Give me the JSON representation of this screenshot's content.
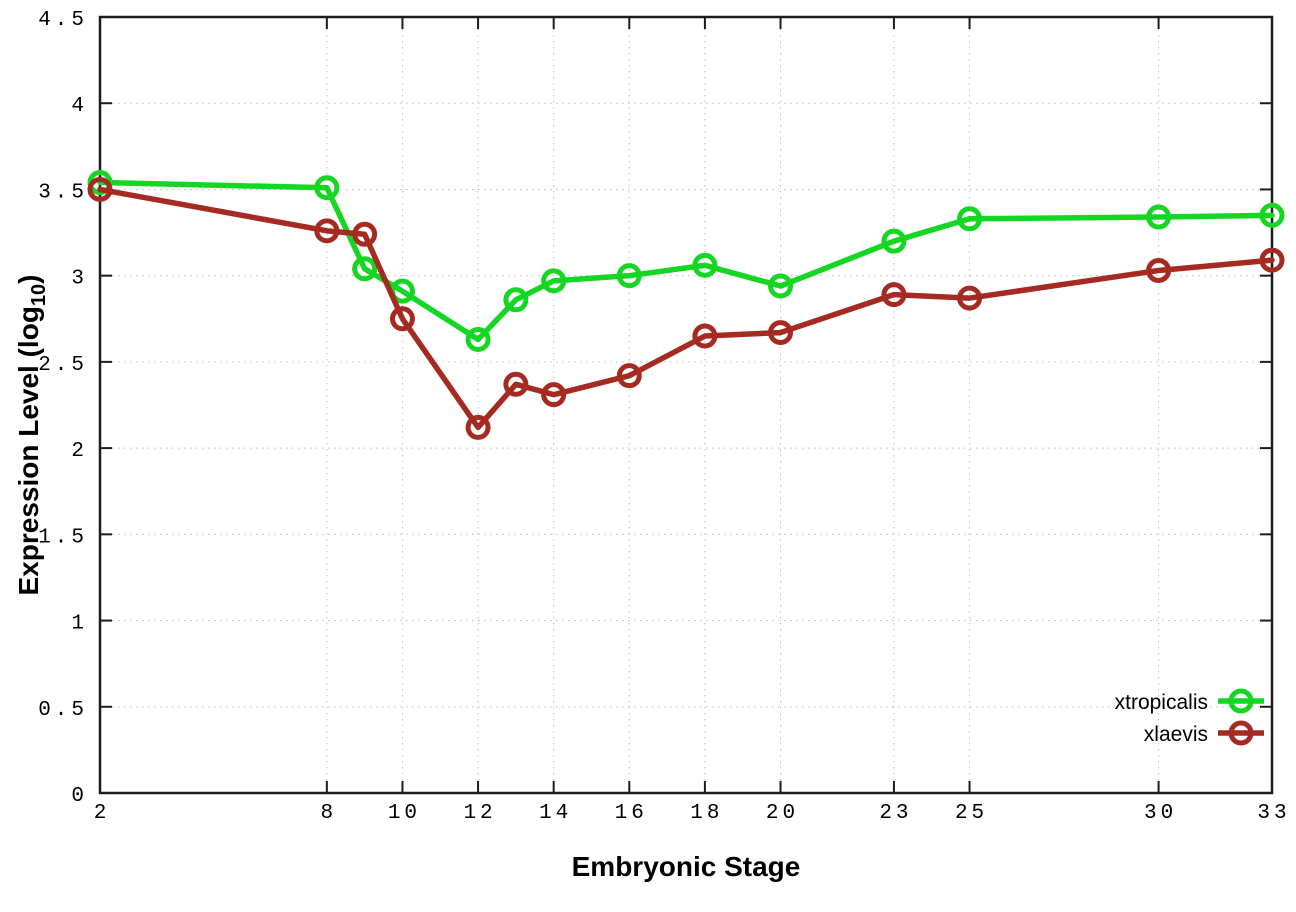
{
  "chart_data": {
    "type": "line",
    "title": "",
    "xlabel": "Embryonic Stage",
    "ylabel": {
      "main": "Expression Level (log",
      "sub": "10",
      "close": ")"
    },
    "x": [
      2,
      8,
      9,
      10,
      12,
      13,
      14,
      16,
      18,
      20,
      23,
      25,
      30,
      33
    ],
    "xticks": [
      2,
      8,
      10,
      12,
      14,
      16,
      18,
      20,
      23,
      25,
      30,
      33
    ],
    "yticks": [
      0,
      0.5,
      1,
      1.5,
      2,
      2.5,
      3,
      3.5,
      4,
      4.5
    ],
    "xlim": [
      2,
      33
    ],
    "ylim": [
      0,
      4.5
    ],
    "grid": true,
    "grid_style": "dotted",
    "legend_position": "inside-bottom-right",
    "background_color": "#ffffff",
    "axis_color": "#1c1c1c",
    "grid_color": "#bdbdbd",
    "marker": "open-circle",
    "series": [
      {
        "name": "xtropicalis",
        "color": "#15d622",
        "values": [
          3.54,
          3.51,
          3.04,
          2.91,
          2.63,
          2.86,
          2.97,
          3.0,
          3.06,
          2.94,
          3.2,
          3.33,
          3.34,
          3.35
        ]
      },
      {
        "name": "xlaevis",
        "color": "#a52b22",
        "values": [
          3.5,
          3.26,
          3.24,
          2.75,
          2.12,
          2.37,
          2.31,
          2.42,
          2.65,
          2.67,
          2.89,
          2.87,
          3.03,
          3.09
        ]
      }
    ]
  }
}
